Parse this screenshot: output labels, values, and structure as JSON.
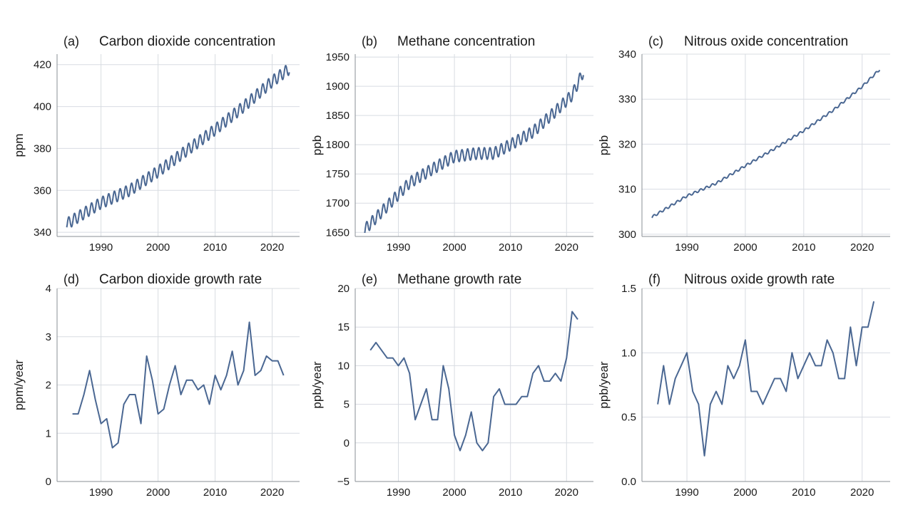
{
  "chart_data": [
    {
      "type": "line",
      "letter": "(a)",
      "title": "Carbon dioxide concentration",
      "ylabel": "ppm",
      "ylim": [
        338,
        425
      ],
      "xlim": [
        1982.3,
        2024.8
      ],
      "yticks": [
        340,
        360,
        380,
        400,
        420
      ],
      "xticks": [
        1990,
        2000,
        2010,
        2020
      ],
      "seasonal": true,
      "x_start": 1984,
      "x_end": 2023,
      "seasonal_amplitude": 2.8,
      "trend": {
        "x": [
          1984,
          1990,
          1995,
          2000,
          2005,
          2010,
          2015,
          2020,
          2023
        ],
        "y": [
          344,
          354,
          360,
          369,
          379,
          389,
          400,
          412,
          418
        ]
      }
    },
    {
      "type": "line",
      "letter": "(b)",
      "title": "Methane concentration",
      "ylabel": "ppb",
      "ylim": [
        1643,
        1955
      ],
      "xlim": [
        1982.3,
        2024.8
      ],
      "yticks": [
        1650,
        1700,
        1750,
        1800,
        1850,
        1900,
        1950
      ],
      "xticks": [
        1990,
        2000,
        2010,
        2020
      ],
      "seasonal": true,
      "x_start": 1984,
      "x_end": 2023,
      "seasonal_amplitude": 10,
      "trend": {
        "x": [
          1984,
          1988,
          1992,
          1996,
          2000,
          2004,
          2007,
          2010,
          2014,
          2018,
          2021,
          2023
        ],
        "y": [
          1655,
          1695,
          1735,
          1758,
          1780,
          1785,
          1785,
          1800,
          1822,
          1857,
          1885,
          1925
        ]
      }
    },
    {
      "type": "line",
      "letter": "(c)",
      "title": "Nitrous oxide concentration",
      "ylabel": "ppb",
      "ylim": [
        299.5,
        340
      ],
      "xlim": [
        1982.3,
        2024.8
      ],
      "yticks": [
        300,
        310,
        320,
        330,
        340
      ],
      "xticks": [
        1990,
        2000,
        2010,
        2020
      ],
      "seasonal": true,
      "x_start": 1984,
      "x_end": 2023,
      "seasonal_amplitude": 0.25,
      "trend": {
        "x": [
          1984,
          1990,
          1995,
          2000,
          2005,
          2010,
          2015,
          2020,
          2023
        ],
        "y": [
          303.8,
          308.5,
          311.3,
          315.2,
          319.0,
          323.0,
          327.5,
          332.8,
          336.6
        ]
      }
    },
    {
      "type": "line",
      "letter": "(d)",
      "title": "Carbon dioxide growth rate",
      "ylabel": "ppm/year",
      "ylim": [
        0,
        4
      ],
      "xlim": [
        1982.3,
        2024.8
      ],
      "yticks": [
        0,
        1,
        2,
        3,
        4
      ],
      "xticks": [
        1990,
        2000,
        2010,
        2020
      ],
      "series": [
        {
          "x": [
            1985,
            1986,
            1987,
            1988,
            1989,
            1990,
            1991,
            1992,
            1993,
            1994,
            1995,
            1996,
            1997,
            1998,
            1999,
            2000,
            2001,
            2002,
            2003,
            2004,
            2005,
            2006,
            2007,
            2008,
            2009,
            2010,
            2011,
            2012,
            2013,
            2014,
            2015,
            2016,
            2017,
            2018,
            2019,
            2020,
            2021,
            2022
          ],
          "y": [
            1.4,
            1.4,
            1.8,
            2.3,
            1.7,
            1.2,
            1.3,
            0.7,
            0.8,
            1.6,
            1.8,
            1.8,
            1.2,
            2.6,
            2.1,
            1.4,
            1.5,
            2.0,
            2.4,
            1.8,
            2.1,
            2.1,
            1.9,
            2.0,
            1.6,
            2.2,
            1.9,
            2.2,
            2.7,
            2.0,
            2.3,
            3.3,
            2.2,
            2.3,
            2.6,
            2.5,
            2.5,
            2.2
          ]
        }
      ]
    },
    {
      "type": "line",
      "letter": "(e)",
      "title": "Methane growth rate",
      "ylabel": "ppb/year",
      "ylim": [
        -5,
        20
      ],
      "xlim": [
        1982.3,
        2024.8
      ],
      "yticks": [
        -5,
        0,
        5,
        10,
        15,
        20
      ],
      "yticklabels": [
        "−5",
        "0",
        "5",
        "10",
        "15",
        "20"
      ],
      "xticks": [
        1990,
        2000,
        2010,
        2020
      ],
      "series": [
        {
          "x": [
            1985,
            1986,
            1987,
            1988,
            1989,
            1990,
            1991,
            1992,
            1993,
            1994,
            1995,
            1996,
            1997,
            1998,
            1999,
            2000,
            2001,
            2002,
            2003,
            2004,
            2005,
            2006,
            2007,
            2008,
            2009,
            2010,
            2011,
            2012,
            2013,
            2014,
            2015,
            2016,
            2017,
            2018,
            2019,
            2020,
            2021,
            2022
          ],
          "y": [
            12,
            13,
            12,
            11,
            11,
            10,
            11,
            9,
            3,
            5,
            7,
            3,
            3,
            10,
            7,
            1,
            -1,
            1,
            4,
            0,
            -1,
            0,
            6,
            7,
            5,
            5,
            5,
            6,
            6,
            9,
            10,
            8,
            8,
            9,
            8,
            11,
            17,
            16
          ]
        }
      ]
    },
    {
      "type": "line",
      "letter": "(f)",
      "title": "Nitrous oxide growth rate",
      "ylabel": "ppb/year",
      "ylim": [
        0,
        1.5
      ],
      "xlim": [
        1982.3,
        2024.8
      ],
      "yticks": [
        0,
        0.5,
        1.0,
        1.5
      ],
      "yticklabels": [
        "0.0",
        "0.5",
        "1.0",
        "1.5"
      ],
      "xticks": [
        1990,
        2000,
        2010,
        2020
      ],
      "series": [
        {
          "x": [
            1985,
            1986,
            1987,
            1988,
            1989,
            1990,
            1991,
            1992,
            1993,
            1994,
            1995,
            1996,
            1997,
            1998,
            1999,
            2000,
            2001,
            2002,
            2003,
            2004,
            2005,
            2006,
            2007,
            2008,
            2009,
            2010,
            2011,
            2012,
            2013,
            2014,
            2015,
            2016,
            2017,
            2018,
            2019,
            2020,
            2021,
            2022
          ],
          "y": [
            0.6,
            0.9,
            0.6,
            0.8,
            0.9,
            1.0,
            0.7,
            0.6,
            0.2,
            0.6,
            0.7,
            0.6,
            0.9,
            0.8,
            0.9,
            1.1,
            0.7,
            0.7,
            0.6,
            0.7,
            0.8,
            0.8,
            0.7,
            1.0,
            0.8,
            0.9,
            1.0,
            0.9,
            0.9,
            1.1,
            1.0,
            0.8,
            0.8,
            1.2,
            0.9,
            1.2,
            1.2,
            1.4
          ]
        }
      ]
    }
  ]
}
